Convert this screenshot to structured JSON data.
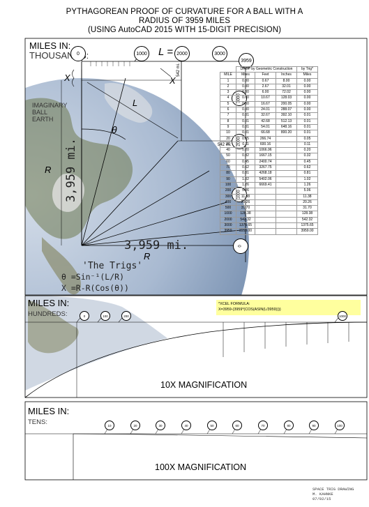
{
  "title": {
    "line1": "PYTHAGOREAN PROOF OF CURVATURE FOR A BALL WITH A",
    "line2": "RADIUS OF 3959 MILES",
    "line3": "(USING AutoCAD 2015 WITH 15-DIGIT PRECISION)"
  },
  "panel_thousands": {
    "heading1": "MILES IN:",
    "heading2": "THOUSANDS:",
    "markers": [
      "0",
      "1000",
      "2000",
      "3000",
      "3959"
    ],
    "l_prefix": "L =",
    "side_markers": [
      "3000",
      "2000",
      "1000",
      "0"
    ],
    "label_x": "X",
    "label_x2": "X",
    "label_542_vert": "542 mi.",
    "label_542_horiz": "542 mi.",
    "label_L": "L",
    "label_theta": "θ",
    "label_R": "R",
    "label_R2": "R",
    "label_ball_1": "IMAGINARY",
    "label_ball_2": "BALL",
    "label_ball_3": "EARTH",
    "radius_vertical": "3,959 mi.",
    "radius_horizontal": "3,959 mi.",
    "trigs_title": "'The Trigs'",
    "trigs_eq1": "θ =Sin⁻¹(L/R)",
    "trigs_eq2": "X =R-R(Cos(θ))"
  },
  "table": {
    "group_header": "DROP by Geometric Construction",
    "trig_header": "by Trig*",
    "columns": [
      "MILE",
      "Miles",
      "Feet",
      "Inches",
      "Miles"
    ],
    "rows": [
      [
        "1",
        "0.00",
        "0.67",
        "8.00",
        "0.00"
      ],
      [
        "2",
        "0.00",
        "2.67",
        "32.01",
        "0.00"
      ],
      [
        "3",
        "0.00",
        "6.00",
        "72.02",
        "0.00"
      ],
      [
        "4",
        "0.00",
        "10.67",
        "128.03",
        "0.00"
      ],
      [
        "5",
        "0.00",
        "16.67",
        "200.05",
        "0.00"
      ],
      [
        "6",
        "0.00",
        "24.01",
        "288.07",
        "0.00"
      ],
      [
        "7",
        "0.01",
        "32.67",
        "392.10",
        "0.01"
      ],
      [
        "8",
        "0.01",
        "42.68",
        "512.13",
        "0.01"
      ],
      [
        "9",
        "0.01",
        "54.01",
        "648.16",
        "0.01"
      ],
      [
        "10",
        "0.01",
        "66.68",
        "800.20",
        "0.01"
      ],
      [
        "20",
        "0.05",
        "266.74",
        "",
        "0.05"
      ],
      [
        "30",
        "0.11",
        "600.16",
        "",
        "0.11"
      ],
      [
        "40",
        "0.20",
        "1066.96",
        "",
        "0.20"
      ],
      [
        "50",
        "0.32",
        "1667.15",
        "",
        "0.32"
      ],
      [
        "60",
        "0.45",
        "2400.74",
        "",
        "0.45"
      ],
      [
        "70",
        "0.62",
        "3267.75",
        "",
        "0.62"
      ],
      [
        "80",
        "0.81",
        "4268.18",
        "",
        "0.81"
      ],
      [
        "90",
        "1.02",
        "5402.06",
        "",
        "1.02"
      ],
      [
        "100",
        "1.26",
        "6669.41",
        "",
        "1.26"
      ],
      [
        "200",
        "5.06",
        "",
        "",
        "5.06"
      ],
      [
        "300",
        "11.38",
        "",
        "",
        "11.38"
      ],
      [
        "400",
        "20.26",
        "",
        "",
        "20.26"
      ],
      [
        "500",
        "31.70",
        "",
        "",
        "31.70"
      ],
      [
        "1000",
        "128.38",
        "",
        "",
        "128.38"
      ],
      [
        "2000",
        "542.32",
        "",
        "",
        "542.32"
      ],
      [
        "3000",
        "1375.65",
        "",
        "",
        "1375.65"
      ],
      [
        "3959",
        "3959.00",
        "",
        "",
        "3959.00"
      ]
    ],
    "formula_line1": "*XCEL FORMULA:",
    "formula_line2": "X=3959-(3959*(COS(ASIN(L/3959))))"
  },
  "panel_hundreds": {
    "heading1": "MILES IN:",
    "heading2": "HUNDREDS:",
    "markers": [
      "0",
      "100",
      "200",
      "1000"
    ],
    "caption": "10X MAGNIFICATION"
  },
  "panel_tens": {
    "heading1": "MILES IN:",
    "heading2": "TENS:",
    "markers": [
      "10",
      "20",
      "30",
      "40",
      "50",
      "60",
      "70",
      "80",
      "90",
      "100"
    ],
    "caption": "100X MAGNIFICATION"
  },
  "credit": {
    "line1": "SPACE TRIG DRAWING",
    "line2": "M. KAHNKE",
    "line3": "07/02/15"
  },
  "colors": {
    "ocean_dark": "#3d5f8a",
    "ocean_light": "#aebfd6",
    "land": "#8a8a5a",
    "formula_bg": "#ffff9e"
  }
}
